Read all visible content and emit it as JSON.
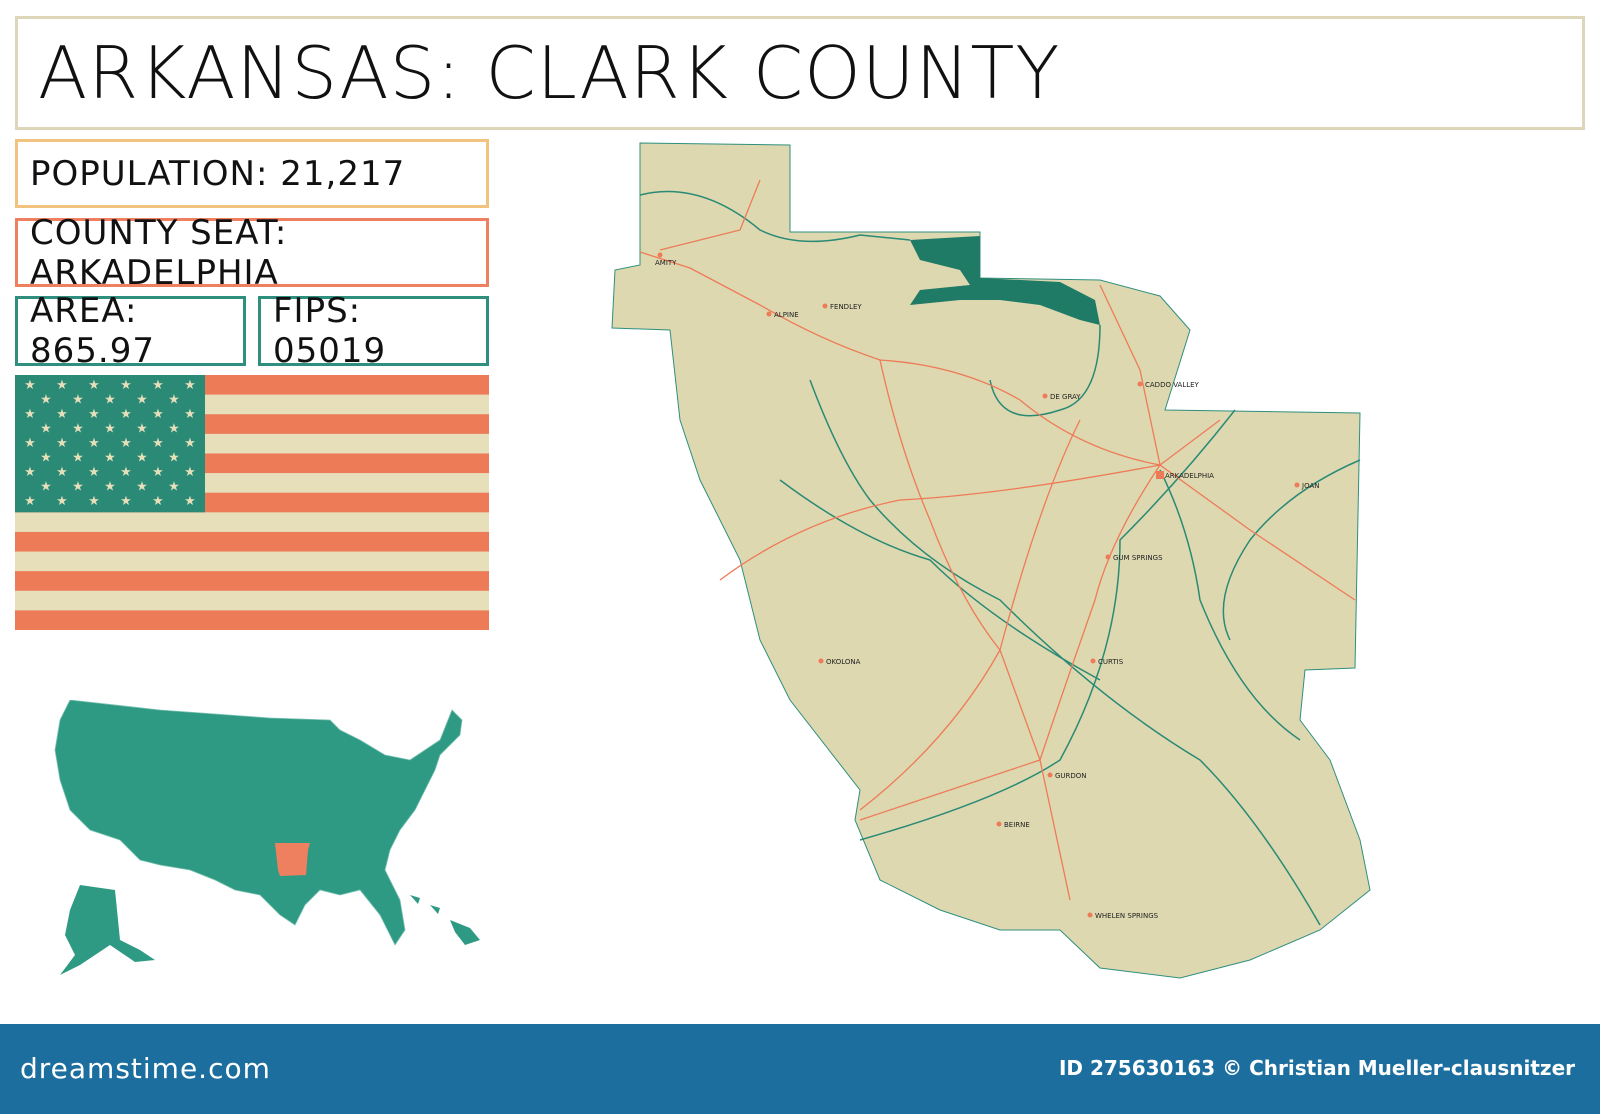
{
  "title": "ARKANSAS: CLARK COUNTY",
  "info": {
    "population": "POPULATION: 21,217",
    "county_seat": "COUNTY SEAT: ARKADELPHIA",
    "area": "AREA: 865.97",
    "fips": "FIPS: 05019"
  },
  "colors": {
    "land": "#ddd8b0",
    "water": "#1f7a66",
    "road": "#ee7b58",
    "us_states": "#2f9a84",
    "highlight_state": "#ee8060",
    "footer": "#1c6e9e"
  },
  "us_map": {
    "highlighted_state": "Arkansas"
  },
  "towns": [
    {
      "name": "AMITY"
    },
    {
      "name": "ALPINE"
    },
    {
      "name": "FENDLEY"
    },
    {
      "name": "DE GRAY"
    },
    {
      "name": "CADDO VALLEY"
    },
    {
      "name": "ARKADELPHIA",
      "seat": true
    },
    {
      "name": "JOAN"
    },
    {
      "name": "GUM SPRINGS"
    },
    {
      "name": "OKOLONA"
    },
    {
      "name": "CURTIS"
    },
    {
      "name": "GURDON"
    },
    {
      "name": "BEIRNE"
    },
    {
      "name": "WHELEN SPRINGS"
    }
  ],
  "footer": {
    "logo": "dreamstime.com",
    "credit": "ID 275630163 © Christian Mueller-clausnitzer"
  }
}
